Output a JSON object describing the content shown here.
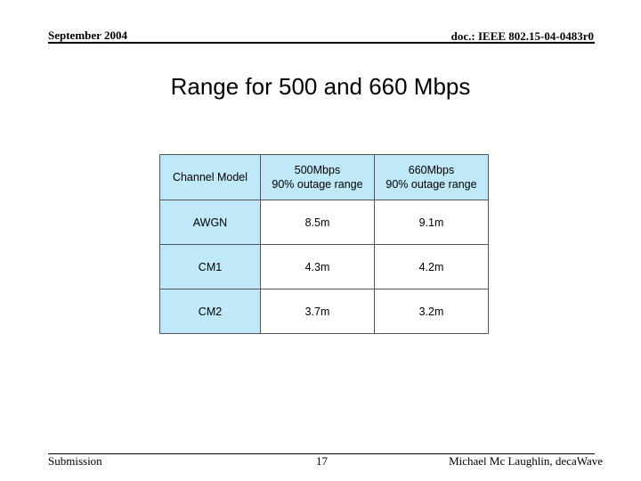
{
  "header": {
    "date": "September 2004",
    "doc_id": "doc.: IEEE 802.15-04-0483r0"
  },
  "slide": {
    "title": "Range for 500 and 660 Mbps"
  },
  "table": {
    "headers": [
      {
        "lines": [
          "Channel Model"
        ]
      },
      {
        "lines": [
          "500Mbps",
          "90% outage range"
        ]
      },
      {
        "lines": [
          "660Mbps",
          "90% outage range"
        ]
      }
    ],
    "rows": [
      {
        "model": "AWGN",
        "r500": "8.5m",
        "r660": "9.1m"
      },
      {
        "model": "CM1",
        "r500": "4.3m",
        "r660": "4.2m"
      },
      {
        "model": "CM2",
        "r500": "3.7m",
        "r660": "3.2m"
      }
    ]
  },
  "footer": {
    "left": "Submission",
    "page_number": "17",
    "author": "Michael Mc Laughlin, decaWave"
  },
  "colors": {
    "header_cell_bg": "#bfe8f8",
    "value_cell_bg": "#ffffff",
    "rule": "#000000"
  }
}
